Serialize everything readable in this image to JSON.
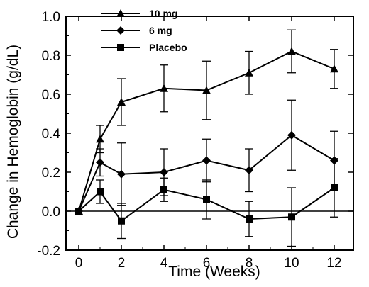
{
  "chart_data": {
    "type": "line",
    "title": "",
    "xlabel": "Time (Weeks)",
    "ylabel": "Change in Hemoglobin (g/dL)",
    "xlim": [
      -0.6,
      12.9
    ],
    "ylim": [
      -0.2,
      1.0
    ],
    "xticks": [
      0,
      2,
      4,
      6,
      8,
      10,
      12
    ],
    "xtick_labels": [
      "0",
      "2",
      "4",
      "6",
      "8",
      "10",
      "12"
    ],
    "yticks": [
      -0.2,
      0.0,
      0.2,
      0.4,
      0.6,
      0.8,
      1.0
    ],
    "ytick_labels": [
      "-0.2",
      "0.0",
      "0.2",
      "0.4",
      "0.6",
      "0.8",
      "1.0"
    ],
    "grid": false,
    "legend": "top-left",
    "series": [
      {
        "name": "10 mg",
        "marker": "triangle",
        "color": "#000000",
        "x": [
          0,
          1,
          2,
          4,
          6,
          8,
          10,
          12
        ],
        "y": [
          0.0,
          0.37,
          0.56,
          0.63,
          0.62,
          0.71,
          0.82,
          0.73
        ],
        "err": [
          0,
          0.07,
          0.12,
          0.12,
          0.15,
          0.11,
          0.11,
          0.1
        ]
      },
      {
        "name": "6 mg",
        "marker": "diamond",
        "color": "#000000",
        "x": [
          0,
          1,
          2,
          4,
          6,
          8,
          10,
          12
        ],
        "y": [
          0.0,
          0.25,
          0.19,
          0.2,
          0.26,
          0.21,
          0.39,
          0.26
        ],
        "err": [
          0,
          0.07,
          0.16,
          0.12,
          0.11,
          0.11,
          0.18,
          0.15
        ]
      },
      {
        "name": "Placebo",
        "marker": "square",
        "color": "#000000",
        "x": [
          0,
          1,
          2,
          4,
          6,
          8,
          10,
          12
        ],
        "y": [
          0.0,
          0.1,
          -0.05,
          0.11,
          0.06,
          -0.04,
          -0.03,
          0.12
        ],
        "err": [
          0,
          0.06,
          0.09,
          0.06,
          0.1,
          0.09,
          0.15,
          0.15
        ]
      }
    ]
  }
}
